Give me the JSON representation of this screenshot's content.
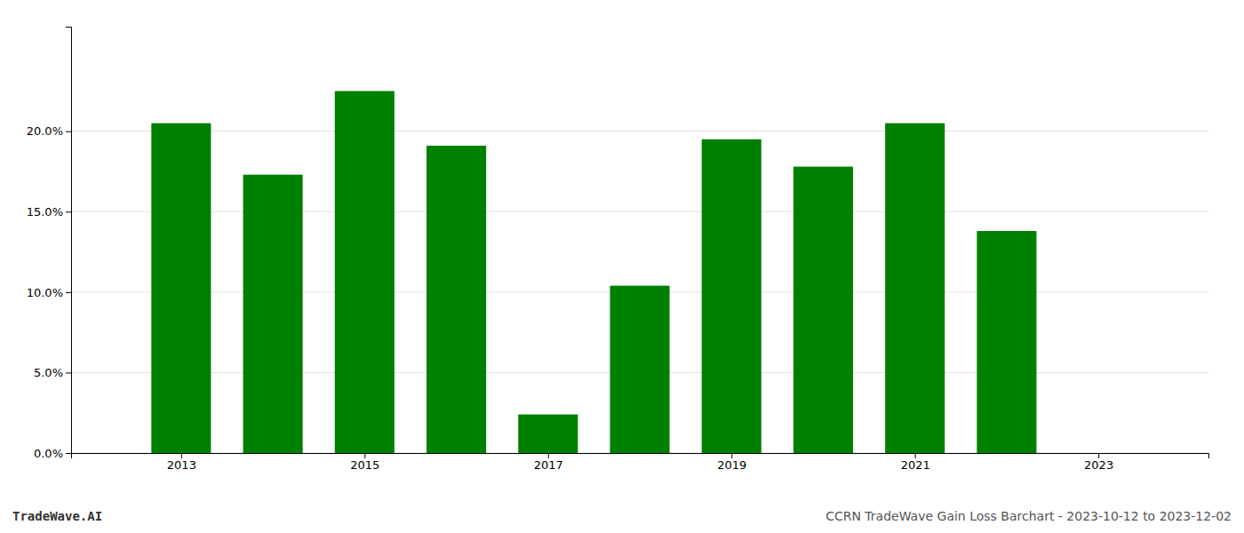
{
  "chart_data": {
    "type": "bar",
    "title": "CCRN TradeWave Gain Loss Barchart - 2023-10-12 to 2023-12-02",
    "annotations": [
      "TradeWave.AI"
    ],
    "x": [
      2013,
      2014,
      2015,
      2016,
      2017,
      2018,
      2019,
      2020,
      2021,
      2022
    ],
    "values": [
      0.205,
      0.173,
      0.225,
      0.191,
      0.024,
      0.104,
      0.195,
      0.178,
      0.205,
      0.138
    ],
    "color": "#008000",
    "xlim": [
      2011.8,
      2024.2
    ],
    "xticks": [
      2013,
      2015,
      2017,
      2019,
      2021,
      2023
    ],
    "ylim": [
      0,
      0.265
    ],
    "yticks": [
      {
        "value": 0.0,
        "label": "0.0%"
      },
      {
        "value": 0.05,
        "label": "5.0%"
      },
      {
        "value": 0.1,
        "label": "10.0%"
      },
      {
        "value": 0.15,
        "label": "15.0%"
      },
      {
        "value": 0.2,
        "label": "20.0%"
      }
    ],
    "grid": "y"
  }
}
